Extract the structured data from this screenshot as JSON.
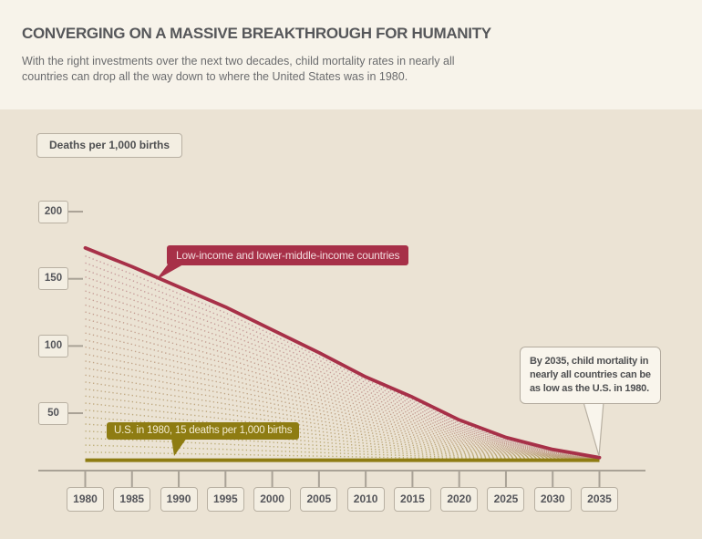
{
  "page": {
    "title": "CONVERGING ON A MASSIVE BREAKTHROUGH FOR HUMANITY",
    "subtitle": "With the right investments over the next two decades, child mortality rates in nearly all countries can drop all the way down to where the United States was in 1980."
  },
  "colors": {
    "header_bg": "#f7f3ea",
    "chart_bg": "#ebe3d4",
    "red": "#a73048",
    "olive": "#8e7c12",
    "axis": "#a9a296",
    "box_bg": "#f3eee2",
    "box_border": "#b8b0a2",
    "callout_bg": "#f9f5ec",
    "text_dark": "#4e4f51",
    "text_gray": "#6b6c6e"
  },
  "chart_data": {
    "type": "line",
    "unit_label": "Deaths per 1,000 births",
    "x": [
      1980,
      1985,
      1990,
      1995,
      2000,
      2005,
      2010,
      2015,
      2020,
      2025,
      2030,
      2035
    ],
    "yticks": [
      200,
      150,
      100,
      50
    ],
    "ylim": [
      0,
      210
    ],
    "grid": false,
    "series": [
      {
        "name": "Low-income and lower-middle-income countries",
        "color": "#a73048",
        "values": [
          173,
          159,
          144,
          129,
          112,
          95,
          77,
          62,
          45,
          32,
          23,
          17
        ]
      },
      {
        "name": "U.S. in 1980, 15 deaths per 1,000 births",
        "color": "#8e7c12",
        "values": [
          15,
          15,
          15,
          15,
          15,
          15,
          15,
          15,
          15,
          15,
          15,
          15
        ]
      }
    ],
    "fan": {
      "description": "dotted country trajectories converging to 15 by 2035",
      "count": 29,
      "start_min": 21,
      "start_max": 167,
      "converge_value": 15,
      "color_top": "#c18b91",
      "color_bottom": "#b2a460"
    },
    "annotations": {
      "callout_lines": [
        "By 2035, child mortality in",
        "nearly all countries can be",
        "as low as the U.S. in 1980."
      ]
    }
  }
}
